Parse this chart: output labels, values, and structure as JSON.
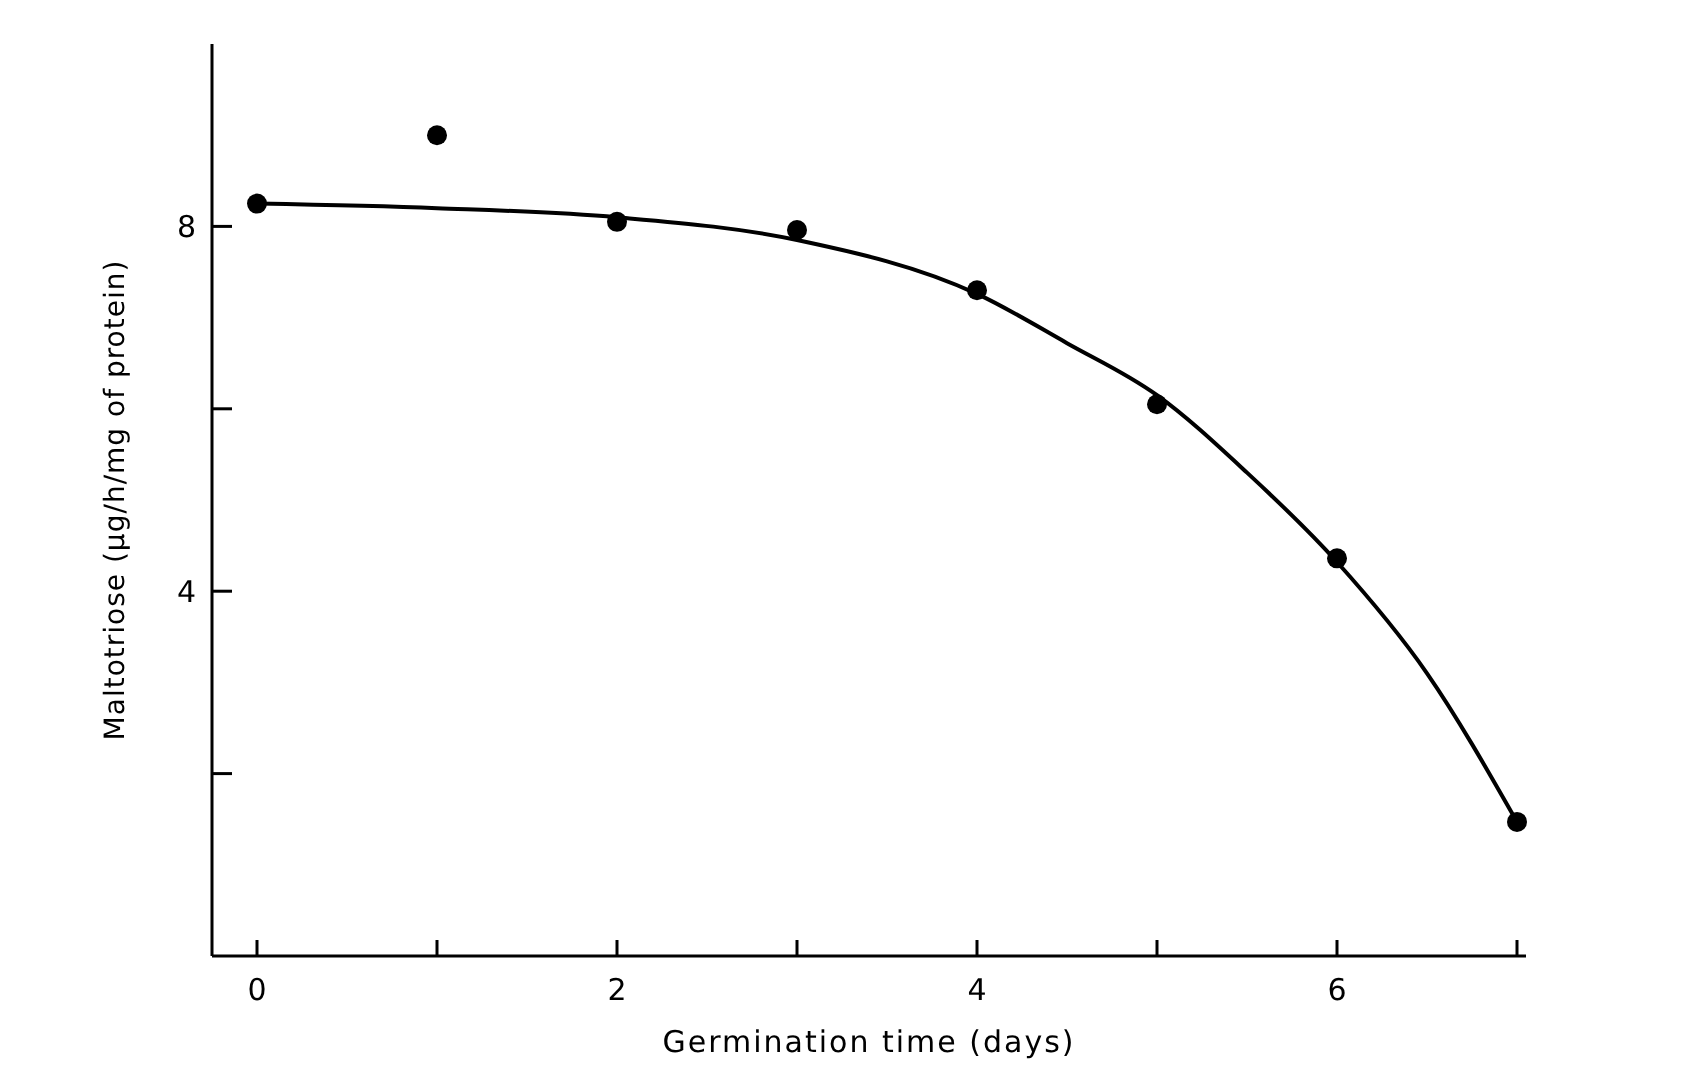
{
  "chart_data": {
    "type": "scatter",
    "xlabel": "Germination time (days)",
    "ylabel": "Maltotriose (μg/h/mg of protein)",
    "xlim": [
      -0.25,
      7.05
    ],
    "ylim": [
      0,
      10
    ],
    "xticks": [
      0,
      {
        "value": 1,
        "label": null
      },
      2,
      {
        "value": 3,
        "label": null
      },
      4,
      {
        "value": 5,
        "label": null
      },
      6,
      {
        "value": 7,
        "label": null
      }
    ],
    "yticks": [
      {
        "value": 2,
        "label": null
      },
      4,
      {
        "value": 6,
        "label": null
      },
      8
    ],
    "grid": false,
    "series": [
      {
        "color": "#000000",
        "marker": "circle",
        "x": [
          0,
          1,
          2,
          3,
          4,
          5,
          6,
          7
        ],
        "values": [
          8.25,
          9.0,
          8.05,
          7.96,
          7.3,
          6.05,
          4.36,
          1.47
        ]
      },
      {
        "type": "line",
        "color": "#000000",
        "marker": "none",
        "line_style": "solid",
        "x": [
          0,
          1,
          2,
          3,
          4,
          4.5,
          5,
          5.5,
          6,
          6.5,
          7
        ],
        "values": [
          8.25,
          8.2,
          8.1,
          7.85,
          7.26,
          6.72,
          6.15,
          5.3,
          4.32,
          3.1,
          1.47
        ]
      }
    ]
  }
}
